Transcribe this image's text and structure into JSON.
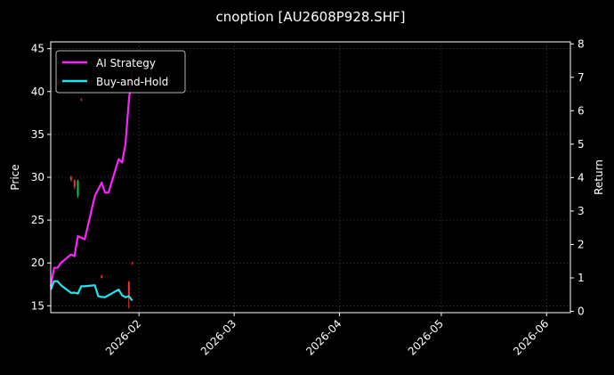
{
  "chart_data": {
    "type": "line",
    "title": "cnoption [AU2608P928.SHF]",
    "ylabel": "Price",
    "y2label": "Return",
    "ylim": [
      14.2,
      45.8
    ],
    "y2lim": [
      -0.04,
      8.06
    ],
    "yticks": [
      "15",
      "20",
      "25",
      "30",
      "35",
      "40",
      "45"
    ],
    "y2ticks": [
      "0",
      "1",
      "2",
      "3",
      "4",
      "5",
      "6",
      "7",
      "8"
    ],
    "xlim": [
      "2026-01-06",
      "2026-06-08"
    ],
    "xticks": [
      "2026-02",
      "2026-03",
      "2026-04",
      "2026-05",
      "2026-06"
    ],
    "grid": true,
    "legend_position": "top-left",
    "colors": {
      "background": "#000000",
      "grid": "#3a3a3a",
      "up": "#00cc44",
      "down": "#ff3030",
      "ai": "#ff22ff",
      "bh": "#22e5f0"
    },
    "series": [
      {
        "name": "AI Strategy",
        "axis": "right",
        "color": "#ff22ff",
        "x": [
          "2026-01-06",
          "2026-01-07",
          "2026-01-08",
          "2026-01-09",
          "2026-01-12",
          "2026-01-13",
          "2026-01-14",
          "2026-01-15",
          "2026-01-16",
          "2026-01-19",
          "2026-01-20",
          "2026-01-21",
          "2026-01-22",
          "2026-01-23",
          "2026-01-26",
          "2026-01-27",
          "2026-01-28",
          "2026-01-29",
          "2026-01-30"
        ],
        "values": [
          0.75,
          1.3,
          1.3,
          1.45,
          1.7,
          1.65,
          2.25,
          2.2,
          2.15,
          3.45,
          3.65,
          3.85,
          3.55,
          3.55,
          4.55,
          4.45,
          5.0,
          6.3,
          7.2
        ]
      },
      {
        "name": "Buy-and-Hold",
        "axis": "right",
        "color": "#22e5f0",
        "x": [
          "2026-01-06",
          "2026-01-07",
          "2026-01-08",
          "2026-01-09",
          "2026-01-12",
          "2026-01-13",
          "2026-01-14",
          "2026-01-15",
          "2026-01-16",
          "2026-01-19",
          "2026-01-20",
          "2026-01-21",
          "2026-01-22",
          "2026-01-23",
          "2026-01-26",
          "2026-01-27",
          "2026-01-28",
          "2026-01-29",
          "2026-01-30"
        ],
        "values": [
          0.65,
          0.9,
          0.9,
          0.78,
          0.55,
          0.56,
          0.53,
          0.75,
          0.75,
          0.78,
          0.45,
          0.43,
          0.42,
          0.48,
          0.65,
          0.48,
          0.42,
          0.45,
          0.32
        ]
      }
    ],
    "candles": {
      "axis": "left",
      "items": [
        {
          "date": "2026-01-12",
          "open": 30.0,
          "close": 29.7,
          "high": 30.2,
          "low": 29.5
        },
        {
          "date": "2026-01-13",
          "open": 29.6,
          "close": 28.9,
          "high": 29.8,
          "low": 28.6
        },
        {
          "date": "2026-01-14",
          "open": 27.8,
          "close": 29.6,
          "high": 29.7,
          "low": 27.6
        },
        {
          "date": "2026-01-15",
          "open": 39.1,
          "close": 39.0,
          "high": 39.2,
          "low": 38.9
        },
        {
          "date": "2026-01-21",
          "open": 18.5,
          "close": 18.3,
          "high": 18.6,
          "low": 18.2
        },
        {
          "date": "2026-01-29",
          "open": 17.8,
          "close": 16.0,
          "high": 17.9,
          "low": 14.7
        },
        {
          "date": "2026-01-30",
          "open": 20.0,
          "close": 19.9,
          "high": 20.1,
          "low": 19.8
        }
      ]
    }
  }
}
